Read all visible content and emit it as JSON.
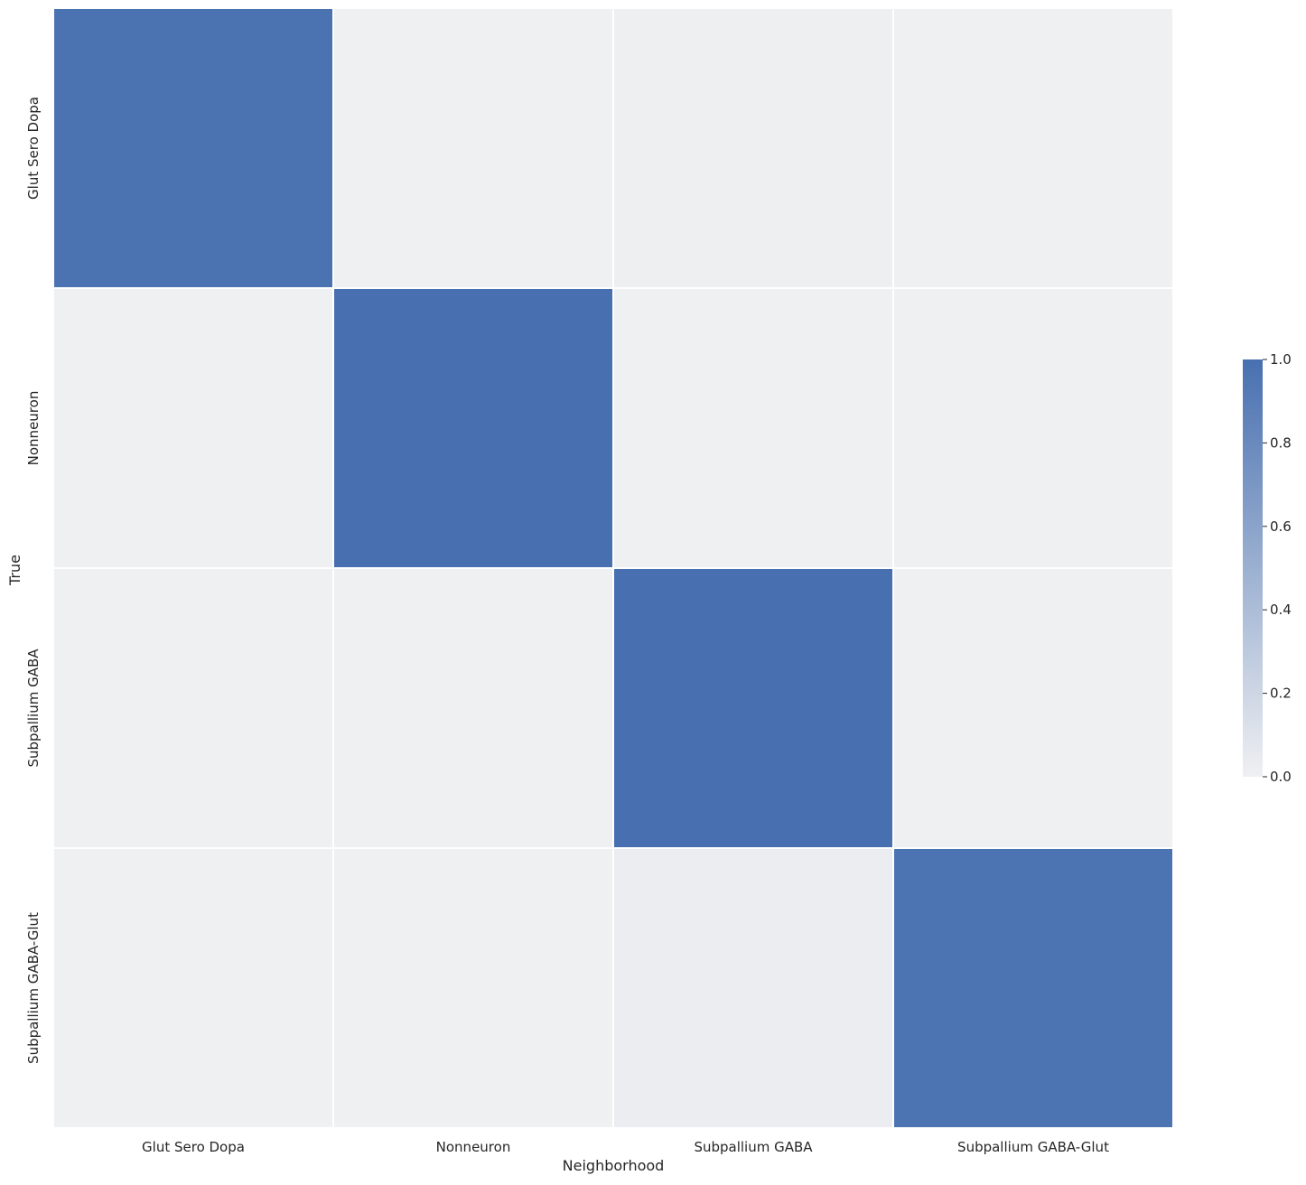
{
  "chart_data": {
    "type": "heatmap",
    "title": "",
    "xlabel": "Neighborhood",
    "ylabel": "True",
    "x_categories": [
      "Glut Sero Dopa",
      "Nonneuron",
      "Subpallium GABA",
      "Subpallium GABA-Glut"
    ],
    "y_categories": [
      "Glut Sero Dopa",
      "Nonneuron",
      "Subpallium GABA",
      "Subpallium GABA-Glut"
    ],
    "values": [
      [
        0.98,
        0.0,
        0.01,
        0.0
      ],
      [
        0.0,
        1.0,
        0.0,
        0.0
      ],
      [
        0.0,
        0.0,
        1.0,
        0.0
      ],
      [
        0.0,
        0.0,
        0.02,
        0.97
      ]
    ],
    "colorbar": {
      "range": [
        0.0,
        1.0
      ],
      "ticks": [
        "0.0",
        "0.2",
        "0.4",
        "0.6",
        "0.8",
        "1.0"
      ],
      "low_color": "#eff0f2",
      "high_color": "#4870b0"
    },
    "grid_line_color": "#ffffff"
  }
}
